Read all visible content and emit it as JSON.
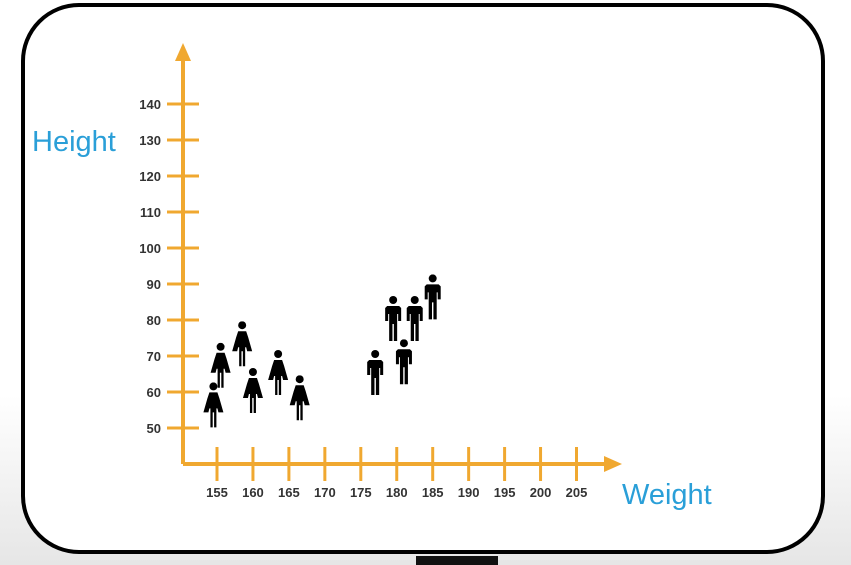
{
  "chart_data": {
    "type": "scatter",
    "xlabel": "Weight",
    "ylabel": "Height",
    "x_ticks": [
      155,
      160,
      165,
      170,
      175,
      180,
      185,
      190,
      195,
      200,
      205
    ],
    "y_ticks": [
      50,
      60,
      70,
      80,
      90,
      100,
      110,
      120,
      130,
      140
    ],
    "xlim": [
      150,
      210
    ],
    "ylim": [
      40,
      150
    ],
    "grid": false,
    "legend": "none",
    "axis_color": "#f0a830",
    "label_color": "#2a9fd8",
    "marker_color": "#000000",
    "series": [
      {
        "marker": "female-icon",
        "points": [
          {
            "x": 154.5,
            "y": 56
          },
          {
            "x": 155.5,
            "y": 67
          },
          {
            "x": 158.5,
            "y": 73
          },
          {
            "x": 160.0,
            "y": 60
          },
          {
            "x": 163.5,
            "y": 65
          },
          {
            "x": 166.5,
            "y": 58
          }
        ]
      },
      {
        "marker": "male-icon",
        "points": [
          {
            "x": 177.0,
            "y": 65
          },
          {
            "x": 179.5,
            "y": 80
          },
          {
            "x": 181.0,
            "y": 68
          },
          {
            "x": 182.5,
            "y": 80
          },
          {
            "x": 185.0,
            "y": 86
          }
        ]
      }
    ]
  }
}
